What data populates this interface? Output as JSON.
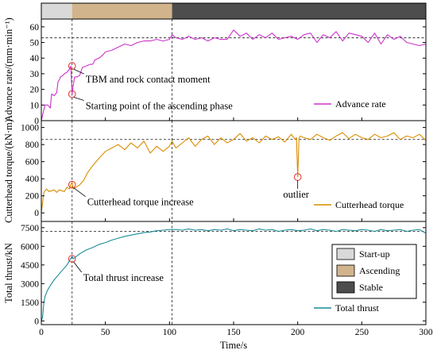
{
  "chart_data": {
    "type": "line",
    "x_axis": {
      "label": "Time/s",
      "range": [
        0,
        300
      ],
      "ticks": [
        0,
        50,
        100,
        150,
        200,
        250,
        300
      ]
    },
    "phase_bar": {
      "segments": [
        {
          "phase": "start-up",
          "from": 0,
          "to": 24,
          "color": "#d9d9d9"
        },
        {
          "phase": "ascending",
          "from": 24,
          "to": 102,
          "color": "#d2b48c"
        },
        {
          "phase": "stable",
          "from": 102,
          "to": 300,
          "color": "#4d4d4d"
        }
      ]
    },
    "phase_legend": [
      {
        "label": "Start-up",
        "color": "#d9d9d9"
      },
      {
        "label": "Ascending",
        "color": "#d2b48c"
      },
      {
        "label": "Stable",
        "color": "#4d4d4d"
      }
    ],
    "vertical_markers": [
      24,
      102
    ],
    "panels": [
      {
        "key": "advance",
        "ylabel": "Advance rate/(mm·min⁻¹)",
        "ylim": [
          0,
          65
        ],
        "yticks": [
          0,
          10,
          20,
          30,
          40,
          50,
          60
        ],
        "series_name": "Advance rate",
        "color": "#cc33cc",
        "ref_line": 53,
        "annotations": [
          {
            "text": "TBM and rock contact moment",
            "point": [
              24,
              35
            ]
          },
          {
            "text": "Starting point of the ascending phase",
            "point": [
              24,
              17
            ]
          }
        ],
        "x": [
          0,
          2,
          3,
          5,
          7,
          8,
          10,
          12,
          13,
          14,
          15,
          17,
          18,
          20,
          22,
          23,
          24,
          25,
          26,
          28,
          30,
          32,
          35,
          38,
          40,
          42,
          45,
          48,
          50,
          55,
          60,
          65,
          70,
          75,
          80,
          85,
          90,
          95,
          100,
          102,
          105,
          110,
          115,
          120,
          125,
          130,
          135,
          140,
          145,
          150,
          155,
          160,
          165,
          170,
          175,
          180,
          185,
          190,
          195,
          200,
          205,
          210,
          215,
          220,
          225,
          230,
          235,
          240,
          245,
          250,
          255,
          260,
          265,
          270,
          275,
          280,
          285,
          290,
          295,
          300
        ],
        "values": [
          0,
          7,
          10,
          10,
          8,
          17,
          16,
          18,
          25,
          26,
          28,
          29,
          30,
          31,
          33,
          35,
          17,
          23,
          28,
          28,
          29,
          34,
          35,
          36,
          36,
          39,
          40,
          42,
          44,
          45,
          47,
          49,
          48,
          50,
          51,
          51,
          52,
          51,
          52,
          55,
          53,
          52,
          54,
          52,
          53,
          51,
          53,
          52,
          52,
          58,
          54,
          56,
          52,
          55,
          53,
          56,
          52,
          53,
          54,
          52,
          55,
          56,
          50,
          55,
          53,
          57,
          51,
          56,
          55,
          54,
          50,
          56,
          49,
          55,
          52,
          54,
          50,
          49,
          48,
          49
        ]
      },
      {
        "key": "torque",
        "ylabel": "Cutterhead torque/(kN·m)",
        "ylim": [
          -100,
          1080
        ],
        "yticks": [
          0,
          200,
          400,
          600,
          800,
          1000
        ],
        "series_name": "Cutterhead torque",
        "color": "#d98c00",
        "ref_line": 860,
        "annotations": [
          {
            "text": "Cutterhead torque increase",
            "point": [
              24,
              330
            ]
          },
          {
            "text": "outlier",
            "point": [
              200,
              420
            ]
          }
        ],
        "x": [
          0,
          2,
          4,
          6,
          8,
          10,
          12,
          14,
          16,
          18,
          20,
          22,
          23,
          24,
          25,
          27,
          30,
          33,
          36,
          40,
          45,
          50,
          55,
          60,
          65,
          70,
          75,
          80,
          85,
          90,
          95,
          100,
          102,
          105,
          110,
          115,
          120,
          125,
          130,
          135,
          140,
          145,
          150,
          155,
          160,
          165,
          170,
          175,
          180,
          185,
          190,
          195,
          198,
          199,
          200,
          201,
          202,
          205,
          210,
          215,
          220,
          225,
          230,
          235,
          240,
          245,
          250,
          255,
          260,
          265,
          270,
          275,
          280,
          285,
          290,
          295,
          300
        ],
        "values": [
          0,
          240,
          280,
          250,
          260,
          270,
          240,
          270,
          260,
          250,
          300,
          280,
          330,
          360,
          280,
          300,
          330,
          380,
          470,
          550,
          640,
          720,
          760,
          800,
          740,
          820,
          760,
          840,
          700,
          780,
          720,
          780,
          840,
          760,
          820,
          880,
          780,
          860,
          900,
          800,
          880,
          820,
          860,
          930,
          840,
          880,
          820,
          900,
          860,
          890,
          830,
          920,
          860,
          880,
          420,
          870,
          900,
          880,
          860,
          920,
          880,
          850,
          900,
          940,
          870,
          920,
          880,
          860,
          920,
          880,
          900,
          940,
          860,
          900,
          880,
          920,
          850
        ]
      },
      {
        "key": "thrust",
        "ylabel": "Total thrust/kN",
        "ylim": [
          -300,
          8000
        ],
        "yticks": [
          0,
          1500,
          3000,
          4500,
          6000,
          7500
        ],
        "series_name": "Total thrust",
        "color": "#1a8c99",
        "ref_line": 7200,
        "annotations": [
          {
            "text": "Total thrust increase",
            "point": [
              24,
              5000
            ]
          }
        ],
        "x": [
          0,
          1,
          2,
          3,
          5,
          8,
          10,
          15,
          20,
          24,
          25,
          30,
          35,
          40,
          45,
          50,
          55,
          60,
          65,
          70,
          75,
          80,
          85,
          90,
          95,
          100,
          105,
          110,
          115,
          120,
          125,
          130,
          135,
          140,
          145,
          150,
          155,
          160,
          165,
          170,
          175,
          180,
          185,
          190,
          195,
          200,
          205,
          210,
          215,
          220,
          225,
          230,
          235,
          240,
          245,
          250,
          255,
          260,
          265,
          270,
          275,
          280,
          285,
          290,
          295,
          300
        ],
        "values": [
          0,
          300,
          1500,
          2000,
          2500,
          3000,
          3300,
          3900,
          4500,
          5200,
          5000,
          5400,
          5700,
          5900,
          6150,
          6300,
          6500,
          6650,
          6800,
          6900,
          7000,
          7100,
          7150,
          7250,
          7300,
          7350,
          7350,
          7300,
          7400,
          7300,
          7350,
          7250,
          7350,
          7300,
          7400,
          7250,
          7350,
          7300,
          7250,
          7400,
          7300,
          7350,
          7200,
          7300,
          7350,
          7250,
          7300,
          7400,
          7250,
          7350,
          7300,
          7200,
          7350,
          7300,
          7250,
          7350,
          7300,
          7200,
          7350,
          7250,
          7300,
          7350,
          7200,
          7300,
          7350,
          7050
        ]
      }
    ]
  }
}
